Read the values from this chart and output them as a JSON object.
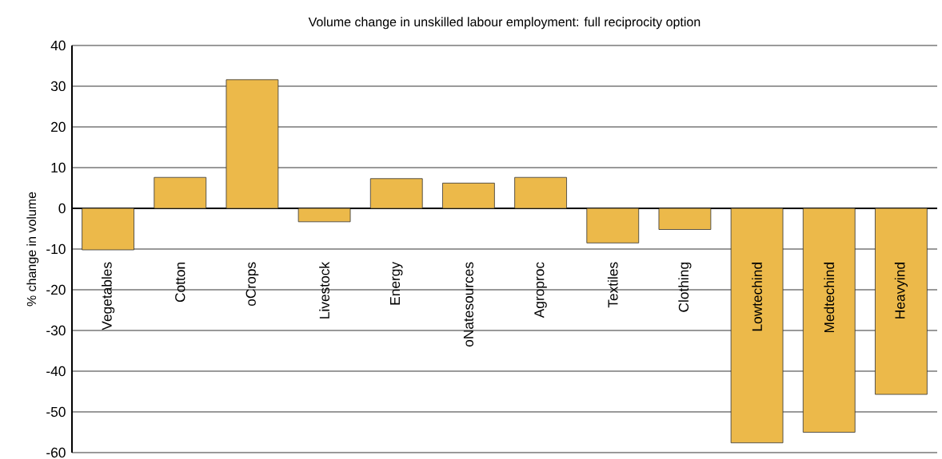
{
  "chart_data": {
    "type": "bar",
    "title": "Volume change in unskilled labour employment: full reciprocity option",
    "ylabel": "% change in volume",
    "categories": [
      "Vegetables",
      "Cotton",
      "oCrops",
      "Livestock",
      "Energy",
      "oNatesources",
      "Agroproc",
      "Textiles",
      "Clothing",
      "Lowtechind",
      "Medtechind",
      "Heavyind"
    ],
    "values": [
      -10.2,
      7.6,
      31.6,
      -3.3,
      7.3,
      6.2,
      7.6,
      -8.5,
      -5.2,
      -57.6,
      -55.0,
      -45.7
    ],
    "color": "#ecb94a",
    "ylim": [
      -60,
      40
    ],
    "yticks": [
      -60,
      -50,
      -40,
      -30,
      -20,
      -10,
      0,
      10,
      20,
      30,
      40
    ],
    "grid": "y"
  }
}
